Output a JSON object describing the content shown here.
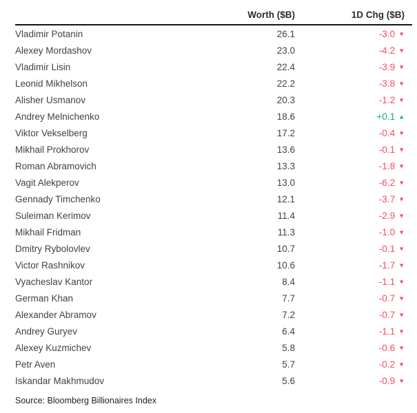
{
  "chart_data": {
    "type": "table",
    "columns": {
      "name": "",
      "worth": "Worth ($B)",
      "chg": "1D Chg ($B)"
    },
    "rows": [
      {
        "name": "Vladimir Potanin",
        "worth": "26.1",
        "chg": "-3.0",
        "dir": "down"
      },
      {
        "name": "Alexey Mordashov",
        "worth": "23.0",
        "chg": "-4.2",
        "dir": "down"
      },
      {
        "name": "Vladimir Lisin",
        "worth": "22.4",
        "chg": "-3.9",
        "dir": "down"
      },
      {
        "name": "Leonid Mikhelson",
        "worth": "22.2",
        "chg": "-3.8",
        "dir": "down"
      },
      {
        "name": "Alisher Usmanov",
        "worth": "20.3",
        "chg": "-1.2",
        "dir": "down"
      },
      {
        "name": "Andrey Melnichenko",
        "worth": "18.6",
        "chg": "+0.1",
        "dir": "up"
      },
      {
        "name": "Viktor Vekselberg",
        "worth": "17.2",
        "chg": "-0.4",
        "dir": "down"
      },
      {
        "name": "Mikhail Prokhorov",
        "worth": "13.6",
        "chg": "-0.1",
        "dir": "down"
      },
      {
        "name": "Roman Abramovich",
        "worth": "13.3",
        "chg": "-1.8",
        "dir": "down"
      },
      {
        "name": "Vagit Alekperov",
        "worth": "13.0",
        "chg": "-6.2",
        "dir": "down"
      },
      {
        "name": "Gennady Timchenko",
        "worth": "12.1",
        "chg": "-3.7",
        "dir": "down"
      },
      {
        "name": "Suleiman Kerimov",
        "worth": "11.4",
        "chg": "-2.9",
        "dir": "down"
      },
      {
        "name": "Mikhail Fridman",
        "worth": "11.3",
        "chg": "-1.0",
        "dir": "down"
      },
      {
        "name": "Dmitry Rybolovlev",
        "worth": "10.7",
        "chg": "-0.1",
        "dir": "down"
      },
      {
        "name": "Victor Rashnikov",
        "worth": "10.6",
        "chg": "-1.7",
        "dir": "down"
      },
      {
        "name": "Vyacheslav Kantor",
        "worth": "8.4",
        "chg": "-1.1",
        "dir": "down"
      },
      {
        "name": "German Khan",
        "worth": "7.7",
        "chg": "-0.7",
        "dir": "down"
      },
      {
        "name": "Alexander Abramov",
        "worth": "7.2",
        "chg": "-0.7",
        "dir": "down"
      },
      {
        "name": "Andrey Guryev",
        "worth": "6.4",
        "chg": "-1.1",
        "dir": "down"
      },
      {
        "name": "Alexey Kuzmichev",
        "worth": "5.8",
        "chg": "-0.6",
        "dir": "down"
      },
      {
        "name": "Petr Aven",
        "worth": "5.7",
        "chg": "-0.2",
        "dir": "down"
      },
      {
        "name": "Iskandar Makhmudov",
        "worth": "5.6",
        "chg": "-0.9",
        "dir": "down"
      }
    ],
    "source": "Source: Bloomberg Billionaires Index",
    "layout": {
      "grid": "off",
      "legend": "none"
    }
  },
  "icons": {
    "down_triangle": "▼",
    "up_triangle": "▲"
  },
  "colors": {
    "down": "#f9495c",
    "up": "#0fb377",
    "rule": "#141414"
  }
}
